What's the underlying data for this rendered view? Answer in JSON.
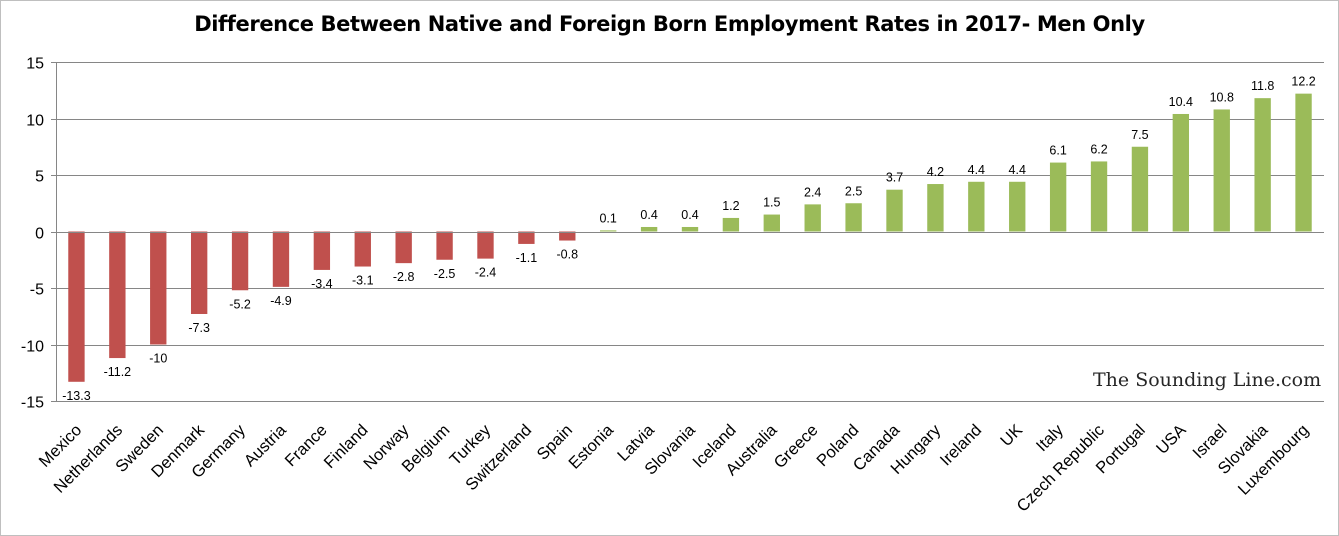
{
  "chart_data": {
    "type": "bar",
    "title": "Difference Between Native and Foreign Born Employment Rates in 2017- Men Only",
    "xlabel": "",
    "ylabel": "",
    "ylim": [
      -15,
      15
    ],
    "yticks": [
      15,
      10,
      5,
      0,
      -5,
      -10,
      -15
    ],
    "grid": true,
    "categories": [
      "Mexico",
      "Netherlands",
      "Sweden",
      "Denmark",
      "Germany",
      "Austria",
      "France",
      "Finland",
      "Norway",
      "Belgium",
      "Turkey",
      "Switzerland",
      "Spain",
      "Estonia",
      "Latvia",
      "Slovania",
      "Iceland",
      "Australia",
      "Greece",
      "Poland",
      "Canada",
      "Hungary",
      "Ireland",
      "UK",
      "Italy",
      "Czech Republic",
      "Portugal",
      "USA",
      "Israel",
      "Slovakia",
      "Luxembourg"
    ],
    "values": [
      -13.3,
      -11.2,
      -10,
      -7.3,
      -5.2,
      -4.9,
      -3.4,
      -3.1,
      -2.8,
      -2.5,
      -2.4,
      -1.1,
      -0.8,
      0.1,
      0.4,
      0.4,
      1.2,
      1.5,
      2.4,
      2.5,
      3.7,
      4.2,
      4.4,
      4.4,
      6.1,
      6.2,
      7.5,
      10.4,
      10.8,
      11.8,
      12.2
    ],
    "colors": {
      "negative": "#c0504d",
      "positive": "#9bbb59"
    }
  },
  "watermark": "The Sounding Line.com"
}
